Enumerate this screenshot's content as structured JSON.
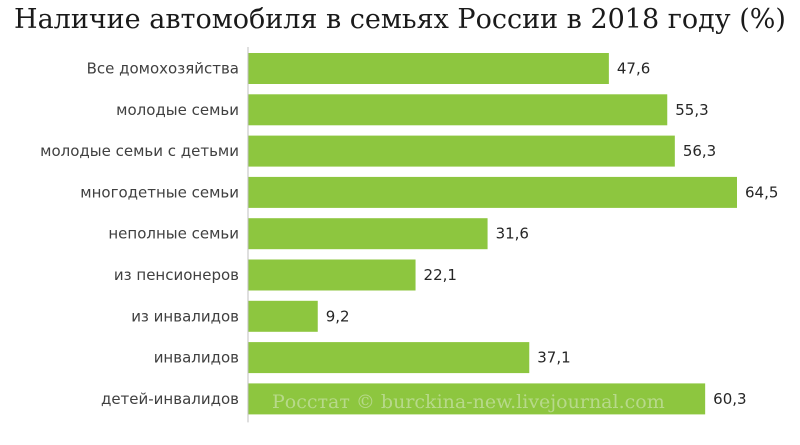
{
  "chart_data": {
    "type": "bar",
    "orientation": "horizontal",
    "title": "Наличие автомобиля в семьях России в 2018 году (%)",
    "categories": [
      "Все домохозяйства",
      "молодые семьи",
      "молодые семьи с детьми",
      "многодетные семьи",
      "неполные семьи",
      "из пенсионеров",
      "из инвалидов",
      "инвалидов",
      "детей-инвалидов"
    ],
    "values": [
      47.6,
      55.3,
      56.3,
      64.5,
      31.6,
      22.1,
      9.2,
      37.1,
      60.3
    ],
    "value_labels": [
      "47,6",
      "55,3",
      "56,3",
      "64,5",
      "31,6",
      "22,1",
      "9,2",
      "37,1",
      "60,3"
    ],
    "bar_color": "#8dc63f",
    "xlim": [
      0,
      64.5
    ],
    "grid": false,
    "legend": "none"
  },
  "watermark": "Росстат © burckina-new.livejournal.com"
}
